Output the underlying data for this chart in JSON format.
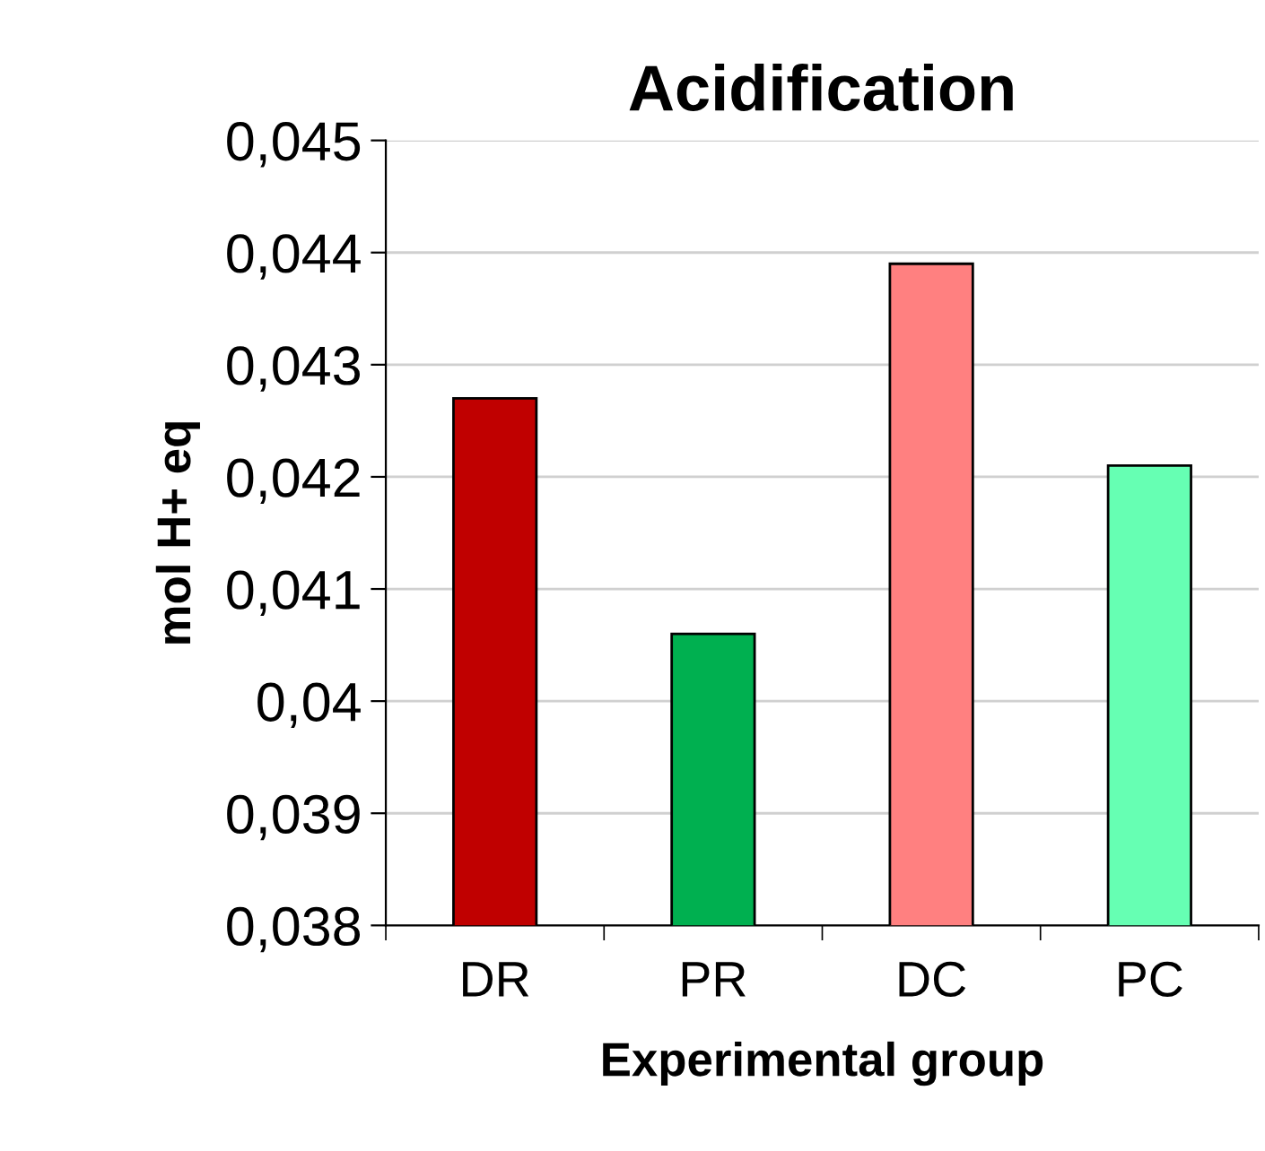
{
  "chart_data": {
    "type": "bar",
    "title": "Acidification",
    "xlabel": "Experimental group",
    "ylabel": "mol H+ eq",
    "categories": [
      "DR",
      "PR",
      "DC",
      "PC"
    ],
    "values": [
      0.0427,
      0.0406,
      0.0439,
      0.0421
    ],
    "colors": [
      "#c00000",
      "#00b050",
      "#ff8080",
      "#66ffb3"
    ],
    "ylim": [
      0.038,
      0.045
    ],
    "yticks": [
      {
        "value": 0.038,
        "label": "0,038"
      },
      {
        "value": 0.039,
        "label": "0,039"
      },
      {
        "value": 0.04,
        "label": "0,04"
      },
      {
        "value": 0.041,
        "label": "0,041"
      },
      {
        "value": 0.042,
        "label": "0,042"
      },
      {
        "value": 0.043,
        "label": "0,043"
      },
      {
        "value": 0.044,
        "label": "0,044"
      },
      {
        "value": 0.045,
        "label": "0,045"
      }
    ],
    "grid": "y",
    "legend": false
  }
}
